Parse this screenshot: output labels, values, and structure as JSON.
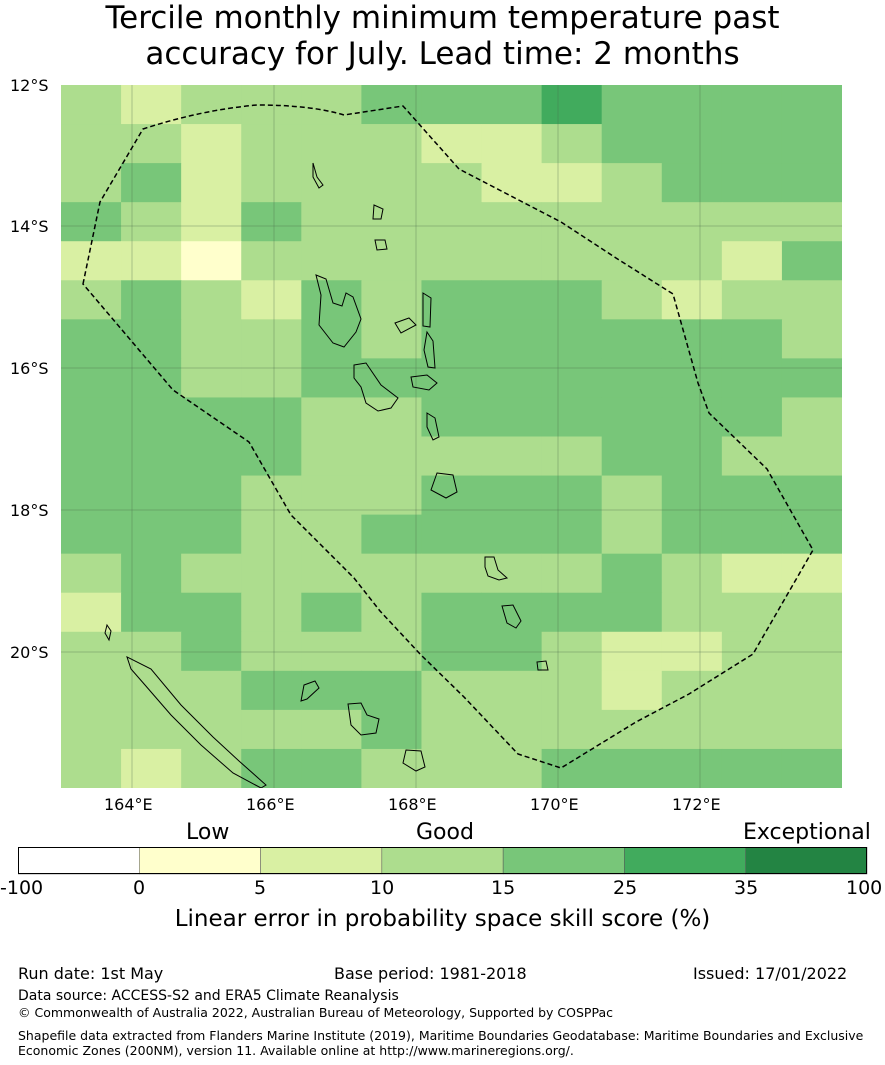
{
  "title_line1": "Tercile monthly minimum temperature past",
  "title_line2": "accuracy for July. Lead time: 2 months",
  "map": {
    "lat_labels": [
      "12°S",
      "14°S",
      "16°S",
      "18°S",
      "20°S"
    ],
    "lon_labels": [
      "164°E",
      "166°E",
      "168°E",
      "170°E",
      "172°E"
    ]
  },
  "legend": {
    "categories": [
      "Low",
      "Good",
      "Exceptional"
    ],
    "ticks": [
      "-100",
      "0",
      "5",
      "10",
      "15",
      "25",
      "35",
      "100"
    ],
    "colors": [
      "#ffffff",
      "#ffffcc",
      "#d9f0a3",
      "#addd8e",
      "#78c679",
      "#41ab5d",
      "#238443"
    ],
    "title": "Linear error in probability space skill score (%)"
  },
  "footer": {
    "run_date": "Run date: 1st May",
    "base_period": "Base period: 1981-2018",
    "issued": "Issued: 17/01/2022",
    "data_source": "Data source: ACCESS-S2 and ERA5 Climate Reanalysis",
    "copyright": "© Commonwealth of Australia 2022, Australian Bureau of Meteorology, Supported by COSPPac",
    "shapefile_line1": "Shapefile data extracted from Flanders Marine Institute (2019), Maritime Boundaries Geodatabase: Maritime Boundaries and Exclusive",
    "shapefile_line2": "Economic Zones (200NM), version 11. Available online at http://www.marineregions.org/."
  }
}
